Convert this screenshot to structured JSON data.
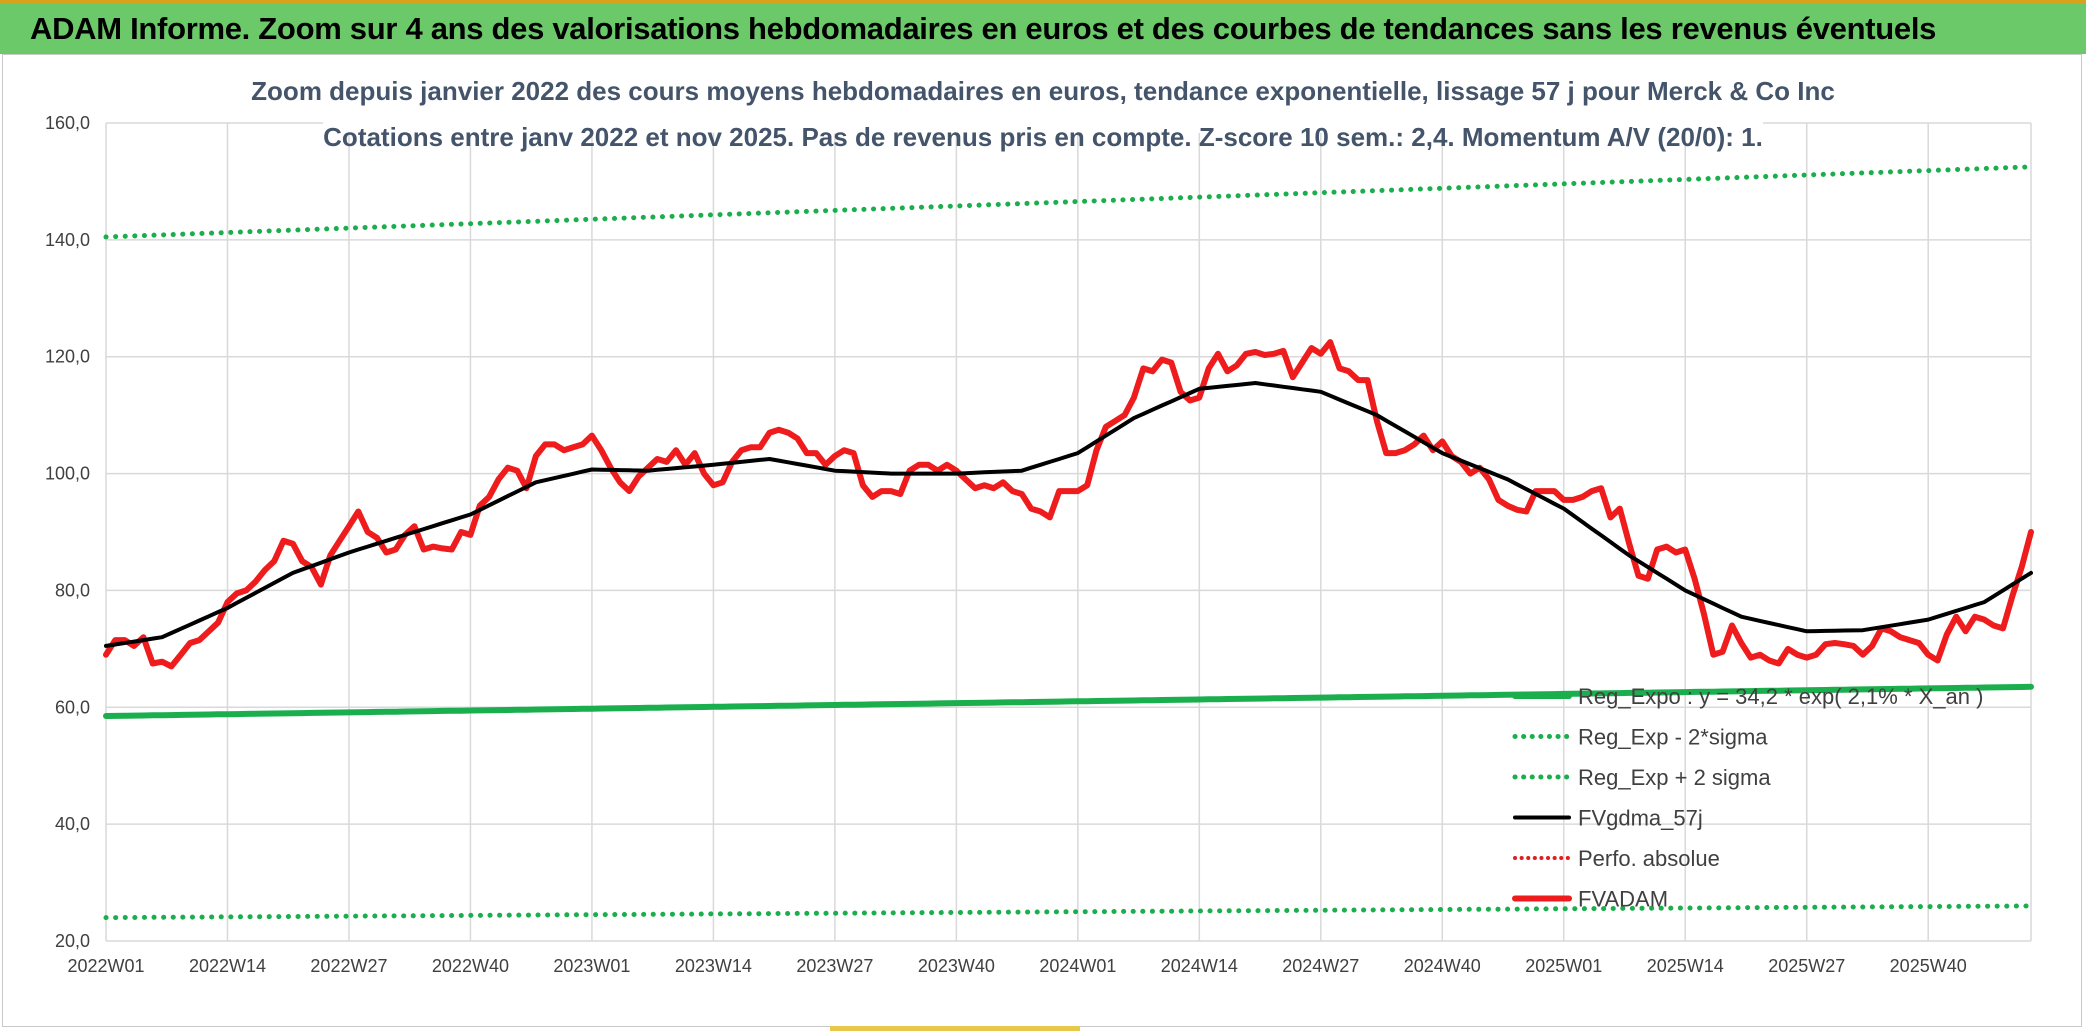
{
  "banner": {
    "title": "ADAM Informe. Zoom sur 4 ans des valorisations hebdomadaires en euros et des courbes de tendances sans les revenus éventuels"
  },
  "colors": {
    "banner_bg": "#6bc969",
    "fvadam": "#ee1c1c",
    "fvgdma": "#000000",
    "reg_green": "#1aae4c",
    "perfo": "#e02020",
    "grid": "#d9d9d9"
  },
  "chart_data": {
    "type": "line",
    "title_line1": "Zoom depuis janvier 2022 des cours moyens hebdomadaires en euros, tendance exponentielle, lissage 57 j pour Merck & Co Inc",
    "title_line2": "Cotations entre janv 2022 et nov 2025. Pas de revenus pris en compte. Z-score 10 sem.: 2,4. Momentum A/V (20/0): 1.",
    "xlabel": "",
    "ylabel": "",
    "ylim": [
      20,
      160
    ],
    "y_ticks": [
      "20,0",
      "40,0",
      "60,0",
      "80,0",
      "100,0",
      "120,0",
      "140,0",
      "160,0"
    ],
    "x_ticks": [
      {
        "label": "2022W01",
        "index": 0
      },
      {
        "label": "2022W14",
        "index": 13
      },
      {
        "label": "2022W27",
        "index": 26
      },
      {
        "label": "2022W40",
        "index": 39
      },
      {
        "label": "2023W01",
        "index": 52
      },
      {
        "label": "2023W14",
        "index": 65
      },
      {
        "label": "2023W27",
        "index": 78
      },
      {
        "label": "2023W40",
        "index": 91
      },
      {
        "label": "2024W01",
        "index": 104
      },
      {
        "label": "2024W14",
        "index": 117
      },
      {
        "label": "2024W27",
        "index": 130
      },
      {
        "label": "2024W40",
        "index": 143
      },
      {
        "label": "2025W01",
        "index": 156
      },
      {
        "label": "2025W14",
        "index": 169
      },
      {
        "label": "2025W27",
        "index": 182
      },
      {
        "label": "2025W40",
        "index": 195
      }
    ],
    "n_points": 207,
    "series": [
      {
        "name": "FVADAM",
        "style": "solid-thick",
        "anchors": [
          [
            0,
            69
          ],
          [
            1,
            71.5
          ],
          [
            2,
            71.5
          ],
          [
            3,
            70.5
          ],
          [
            4,
            72
          ],
          [
            5,
            67.5
          ],
          [
            6,
            67.8
          ],
          [
            7,
            67
          ],
          [
            8,
            69
          ],
          [
            9,
            71
          ],
          [
            10,
            71.5
          ],
          [
            11,
            73
          ],
          [
            12,
            74.5
          ],
          [
            13,
            78
          ],
          [
            14,
            79.5
          ],
          [
            15,
            80
          ],
          [
            16,
            81.5
          ],
          [
            17,
            83.5
          ],
          [
            18,
            85
          ],
          [
            19,
            88.5
          ],
          [
            20,
            88
          ],
          [
            21,
            85
          ],
          [
            22,
            84
          ],
          [
            23,
            81
          ],
          [
            24,
            86
          ],
          [
            25,
            88.5
          ],
          [
            26,
            91
          ],
          [
            27,
            93.5
          ],
          [
            28,
            90
          ],
          [
            29,
            89
          ],
          [
            30,
            86.5
          ],
          [
            31,
            87
          ],
          [
            32,
            89.5
          ],
          [
            33,
            91
          ],
          [
            34,
            87
          ],
          [
            35,
            87.5
          ],
          [
            36,
            87.2
          ],
          [
            37,
            87
          ],
          [
            38,
            90
          ],
          [
            39,
            89.5
          ],
          [
            40,
            94.5
          ],
          [
            41,
            96
          ],
          [
            42,
            99
          ],
          [
            43,
            101
          ],
          [
            44,
            100.5
          ],
          [
            45,
            97.5
          ],
          [
            46,
            103
          ],
          [
            47,
            105
          ],
          [
            48,
            105
          ],
          [
            49,
            104
          ],
          [
            50,
            104.5
          ],
          [
            51,
            105
          ],
          [
            52,
            106.5
          ],
          [
            53,
            104
          ],
          [
            54,
            101
          ],
          [
            55,
            98.5
          ],
          [
            56,
            97
          ],
          [
            57,
            99.5
          ],
          [
            58,
            101
          ],
          [
            59,
            102.5
          ],
          [
            60,
            102
          ],
          [
            61,
            104
          ],
          [
            62,
            101.5
          ],
          [
            63,
            103.5
          ],
          [
            64,
            100
          ],
          [
            65,
            98
          ],
          [
            66,
            98.5
          ],
          [
            67,
            102
          ],
          [
            68,
            104
          ],
          [
            69,
            104.5
          ],
          [
            70,
            104.5
          ],
          [
            71,
            107
          ],
          [
            72,
            107.5
          ],
          [
            73,
            107
          ],
          [
            74,
            106
          ],
          [
            75,
            103.5
          ],
          [
            76,
            103.5
          ],
          [
            77,
            101.5
          ],
          [
            78,
            103
          ],
          [
            79,
            104
          ],
          [
            80,
            103.5
          ],
          [
            81,
            98
          ],
          [
            82,
            96
          ],
          [
            83,
            97
          ],
          [
            84,
            97
          ],
          [
            85,
            96.5
          ],
          [
            86,
            100.5
          ],
          [
            87,
            101.5
          ],
          [
            88,
            101.5
          ],
          [
            89,
            100.5
          ],
          [
            90,
            101.5
          ],
          [
            91,
            100.5
          ],
          [
            92,
            99
          ],
          [
            93,
            97.5
          ],
          [
            94,
            98
          ],
          [
            95,
            97.5
          ],
          [
            96,
            98.5
          ],
          [
            97,
            97
          ],
          [
            98,
            96.5
          ],
          [
            99,
            94
          ],
          [
            100,
            93.5
          ],
          [
            101,
            92.5
          ],
          [
            102,
            97
          ],
          [
            103,
            97
          ],
          [
            104,
            97
          ],
          [
            105,
            98
          ],
          [
            106,
            104
          ],
          [
            107,
            108
          ],
          [
            108,
            109
          ],
          [
            109,
            110
          ],
          [
            110,
            113
          ],
          [
            111,
            118
          ],
          [
            112,
            117.5
          ],
          [
            113,
            119.5
          ],
          [
            114,
            119
          ],
          [
            115,
            114
          ],
          [
            116,
            112.5
          ],
          [
            117,
            113
          ],
          [
            118,
            118
          ],
          [
            119,
            120.5
          ],
          [
            120,
            117.5
          ],
          [
            121,
            118.5
          ],
          [
            122,
            120.5
          ],
          [
            123,
            120.8
          ],
          [
            124,
            120.3
          ],
          [
            125,
            120.5
          ],
          [
            126,
            121
          ],
          [
            127,
            116.5
          ],
          [
            128,
            119
          ],
          [
            129,
            121.5
          ],
          [
            130,
            120.5
          ],
          [
            131,
            122.5
          ],
          [
            132,
            118
          ],
          [
            133,
            117.5
          ],
          [
            134,
            116
          ],
          [
            135,
            116
          ],
          [
            136,
            109
          ],
          [
            137,
            103.5
          ],
          [
            138,
            103.5
          ],
          [
            139,
            104
          ],
          [
            140,
            105
          ],
          [
            141,
            106.5
          ],
          [
            142,
            104
          ],
          [
            143,
            105.5
          ],
          [
            144,
            103
          ],
          [
            145,
            102
          ],
          [
            146,
            100
          ],
          [
            147,
            101
          ],
          [
            148,
            99
          ],
          [
            149,
            95.5
          ],
          [
            150,
            94.5
          ],
          [
            151,
            93.8
          ],
          [
            152,
            93.5
          ],
          [
            153,
            97
          ],
          [
            154,
            97
          ],
          [
            155,
            97
          ],
          [
            156,
            95.5
          ],
          [
            157,
            95.5
          ],
          [
            158,
            96
          ],
          [
            159,
            97
          ],
          [
            160,
            97.5
          ],
          [
            161,
            92.5
          ],
          [
            162,
            94
          ],
          [
            163,
            88
          ],
          [
            164,
            82.5
          ],
          [
            165,
            82
          ],
          [
            166,
            87
          ],
          [
            167,
            87.5
          ],
          [
            168,
            86.5
          ],
          [
            169,
            87
          ],
          [
            170,
            82
          ],
          [
            171,
            76
          ],
          [
            172,
            69
          ],
          [
            173,
            69.5
          ],
          [
            174,
            74
          ],
          [
            175,
            71
          ],
          [
            176,
            68.5
          ],
          [
            177,
            69
          ],
          [
            178,
            68
          ],
          [
            179,
            67.5
          ],
          [
            180,
            70
          ],
          [
            181,
            69
          ],
          [
            182,
            68.5
          ],
          [
            183,
            69
          ],
          [
            184,
            70.8
          ],
          [
            185,
            71
          ],
          [
            186,
            70.8
          ],
          [
            187,
            70.5
          ],
          [
            188,
            69
          ],
          [
            189,
            70.5
          ],
          [
            190,
            73.5
          ],
          [
            191,
            73
          ],
          [
            192,
            72
          ],
          [
            193,
            71.5
          ],
          [
            194,
            71
          ],
          [
            195,
            69
          ],
          [
            196,
            68
          ],
          [
            197,
            72.5
          ],
          [
            198,
            75.5
          ],
          [
            199,
            73
          ],
          [
            200,
            75.5
          ],
          [
            201,
            75
          ],
          [
            202,
            74
          ],
          [
            203,
            73.5
          ],
          [
            204,
            79
          ],
          [
            205,
            84
          ],
          [
            206,
            90
          ]
        ]
      },
      {
        "name": "FVgdma_57j",
        "style": "solid",
        "anchors": [
          [
            0,
            70.5
          ],
          [
            6,
            72
          ],
          [
            13,
            77
          ],
          [
            20,
            83
          ],
          [
            26,
            86.5
          ],
          [
            33,
            90
          ],
          [
            39,
            93
          ],
          [
            46,
            98.5
          ],
          [
            52,
            100.7
          ],
          [
            58,
            100.5
          ],
          [
            65,
            101.5
          ],
          [
            71,
            102.5
          ],
          [
            78,
            100.5
          ],
          [
            84,
            100
          ],
          [
            91,
            100
          ],
          [
            98,
            100.5
          ],
          [
            104,
            103.5
          ],
          [
            110,
            109.5
          ],
          [
            117,
            114.5
          ],
          [
            123,
            115.5
          ],
          [
            130,
            114
          ],
          [
            136,
            110
          ],
          [
            143,
            103.5
          ],
          [
            150,
            99
          ],
          [
            156,
            94
          ],
          [
            163,
            86
          ],
          [
            169,
            80
          ],
          [
            175,
            75.5
          ],
          [
            182,
            73
          ],
          [
            188,
            73.2
          ],
          [
            195,
            75
          ],
          [
            201,
            78
          ],
          [
            206,
            83
          ]
        ]
      },
      {
        "name": "Reg_Expo : y = 34,2 * exp( 2,1% * X_an )",
        "style": "solid-green",
        "anchors": [
          [
            0,
            58.5
          ],
          [
            206,
            63.5
          ]
        ]
      },
      {
        "name": "Reg_Exp - 2*sigma",
        "style": "dotted-green",
        "anchors": [
          [
            0,
            24
          ],
          [
            206,
            26
          ]
        ]
      },
      {
        "name": "Reg_Exp + 2 sigma",
        "style": "dotted-green",
        "anchors": [
          [
            0,
            140.5
          ],
          [
            206,
            152.5
          ]
        ]
      }
    ],
    "legend": [
      {
        "label": "Reg_Expo : y = 34,2 * exp( 2,1% * X_an )",
        "style": "solid-green"
      },
      {
        "label": "Reg_Exp - 2*sigma",
        "style": "dotted-green"
      },
      {
        "label": "Reg_Exp + 2 sigma",
        "style": "dotted-green"
      },
      {
        "label": "FVgdma_57j",
        "style": "solid-black"
      },
      {
        "label": "Perfo. absolue",
        "style": "dotted-red"
      },
      {
        "label": "FVADAM",
        "style": "solid-red"
      }
    ],
    "legend_position": "bottom-right"
  }
}
